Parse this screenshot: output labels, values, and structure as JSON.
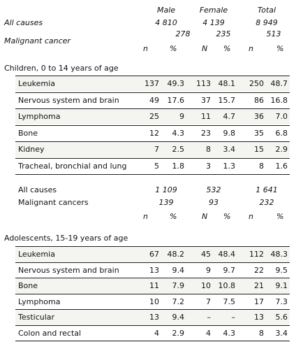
{
  "header": {
    "groups": [
      "Male",
      "Female",
      "Total"
    ],
    "all_causes_label": "All causes",
    "all_causes": [
      "4 810",
      "4 139",
      "8 949"
    ],
    "malignant_label": "Malignant cancer",
    "malignant": [
      "278",
      "235",
      "513"
    ],
    "cols": [
      "n",
      "%",
      "N",
      "%",
      "n",
      "%"
    ]
  },
  "children": {
    "title": "Children, 0 to 14 years of age",
    "rows": [
      {
        "label": "Leukemia",
        "v": [
          "137",
          "49.3",
          "113",
          "48.1",
          "250",
          "48.7"
        ]
      },
      {
        "label": "Nervous system and brain",
        "v": [
          "49",
          "17.6",
          "37",
          "15.7",
          "86",
          "16.8"
        ]
      },
      {
        "label": "Lymphoma",
        "v": [
          "25",
          "9",
          "11",
          "4.7",
          "36",
          "7.0"
        ]
      },
      {
        "label": "Bone",
        "v": [
          "12",
          "4.3",
          "23",
          "9.8",
          "35",
          "6.8"
        ]
      },
      {
        "label": "Kidney",
        "v": [
          "7",
          "2.5",
          "8",
          "3.4",
          "15",
          "2.9"
        ]
      },
      {
        "label": "Tracheal, bronchial and lung",
        "v": [
          "5",
          "1.8",
          "3",
          "1.3",
          "8",
          "1.6"
        ]
      }
    ]
  },
  "mid": {
    "all_causes_label": "All causes",
    "all_causes": [
      "1 109",
      "532",
      "1 641"
    ],
    "malignant_label": "Malignant cancers",
    "malignant": [
      "139",
      "93",
      "232"
    ],
    "cols": [
      "n",
      "%",
      "N",
      "%",
      "n",
      "%"
    ]
  },
  "adolescents": {
    "title": "Adolescents, 15-19 years of age",
    "rows": [
      {
        "label": "Leukemia",
        "v": [
          "67",
          "48.2",
          "45",
          "48.4",
          "112",
          "48.3"
        ]
      },
      {
        "label": "Nervous system and brain",
        "v": [
          "13",
          "9.4",
          "9",
          "9.7",
          "22",
          "9.5"
        ]
      },
      {
        "label": "Bone",
        "v": [
          "11",
          "7.9",
          "10",
          "10.8",
          "21",
          "9.1"
        ]
      },
      {
        "label": "Lymphoma",
        "v": [
          "10",
          "7.2",
          "7",
          "7.5",
          "17",
          "7.3"
        ]
      },
      {
        "label": "Testicular",
        "v": [
          "13",
          "9.4",
          "–",
          "–",
          "13",
          "5.6"
        ]
      },
      {
        "label": "Colon and rectal",
        "v": [
          "4",
          "2.9",
          "4",
          "4.3",
          "8",
          "3.4"
        ]
      }
    ]
  }
}
